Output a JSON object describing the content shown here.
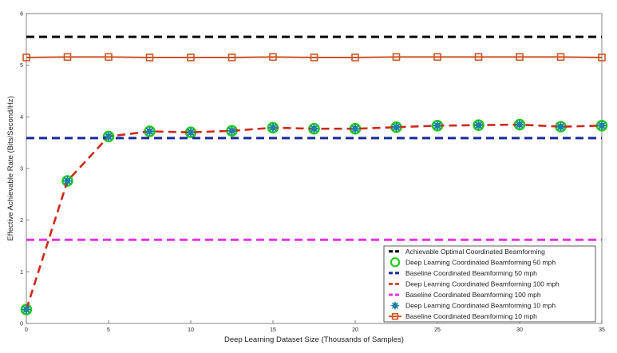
{
  "chart_data": {
    "type": "line",
    "xlabel": "Deep Learning Dataset Size (Thousands of Samples)",
    "ylabel": "Effective Achievable Rate (Bits/Second/Hz)",
    "xlim": [
      0,
      35
    ],
    "ylim": [
      0,
      6
    ],
    "xticks": [
      0,
      5,
      10,
      15,
      20,
      25,
      30,
      35
    ],
    "yticks": [
      0,
      1,
      2,
      3,
      4,
      5,
      6
    ],
    "grid": false,
    "legend_position": "bottom-right",
    "series": [
      {
        "name": "Achievable Optimal Coordinated Beamforming",
        "style": "dashed",
        "marker": "none",
        "color": "#000000",
        "x": [
          0,
          35
        ],
        "y": [
          5.55,
          5.55
        ]
      },
      {
        "name": "Deep Learning Coordinated Beamforming 50 mph",
        "style": "none",
        "marker": "circle",
        "color": "#22cc22",
        "x": [
          0,
          2.5,
          5,
          7.5,
          10,
          12.5,
          15,
          17.5,
          20,
          22.5,
          25,
          27.5,
          30,
          32.5,
          35
        ],
        "y": [
          0.27,
          2.76,
          3.62,
          3.72,
          3.7,
          3.73,
          3.79,
          3.77,
          3.77,
          3.8,
          3.83,
          3.84,
          3.85,
          3.81,
          3.83
        ]
      },
      {
        "name": "Baseline Coordinated Beamforming 50 mph",
        "style": "dashed",
        "marker": "none",
        "color": "#1a2a99",
        "x": [
          0,
          35
        ],
        "y": [
          3.59,
          3.59
        ]
      },
      {
        "name": "Deep Learning Coordinated Beamforming 100 mph",
        "style": "dashed",
        "marker": "none",
        "color": "#cc2a1a",
        "x": [
          0,
          2.5,
          5,
          7.5,
          10,
          12.5,
          15,
          17.5,
          20,
          22.5,
          25,
          27.5,
          30,
          32.5,
          35
        ],
        "y": [
          0.27,
          2.76,
          3.62,
          3.72,
          3.7,
          3.73,
          3.79,
          3.77,
          3.77,
          3.8,
          3.83,
          3.84,
          3.85,
          3.81,
          3.83
        ]
      },
      {
        "name": "Baseline Coordinated Beamforming 100 mph",
        "style": "dashed",
        "marker": "none",
        "color": "#e633e6",
        "x": [
          0,
          35
        ],
        "y": [
          1.62,
          1.62
        ]
      },
      {
        "name": "Deep Learning Coordinated Beamforming 10 mph",
        "style": "none",
        "marker": "star",
        "color": "#1f7fa6",
        "x": [
          0,
          2.5,
          5,
          7.5,
          10,
          12.5,
          15,
          17.5,
          20,
          22.5,
          25,
          27.5,
          30,
          32.5,
          35
        ],
        "y": [
          0.27,
          2.76,
          3.62,
          3.72,
          3.7,
          3.73,
          3.79,
          3.77,
          3.77,
          3.8,
          3.83,
          3.84,
          3.85,
          3.81,
          3.83
        ]
      },
      {
        "name": "Baseline Coordinated Beamforming 10 mph",
        "style": "solid",
        "marker": "square",
        "color": "#cc5522",
        "x": [
          0,
          2.5,
          5,
          7.5,
          10,
          12.5,
          15,
          17.5,
          20,
          22.5,
          25,
          27.5,
          30,
          32.5,
          35
        ],
        "y": [
          5.15,
          5.16,
          5.16,
          5.15,
          5.15,
          5.15,
          5.16,
          5.15,
          5.15,
          5.16,
          5.16,
          5.16,
          5.16,
          5.16,
          5.15
        ]
      }
    ]
  }
}
